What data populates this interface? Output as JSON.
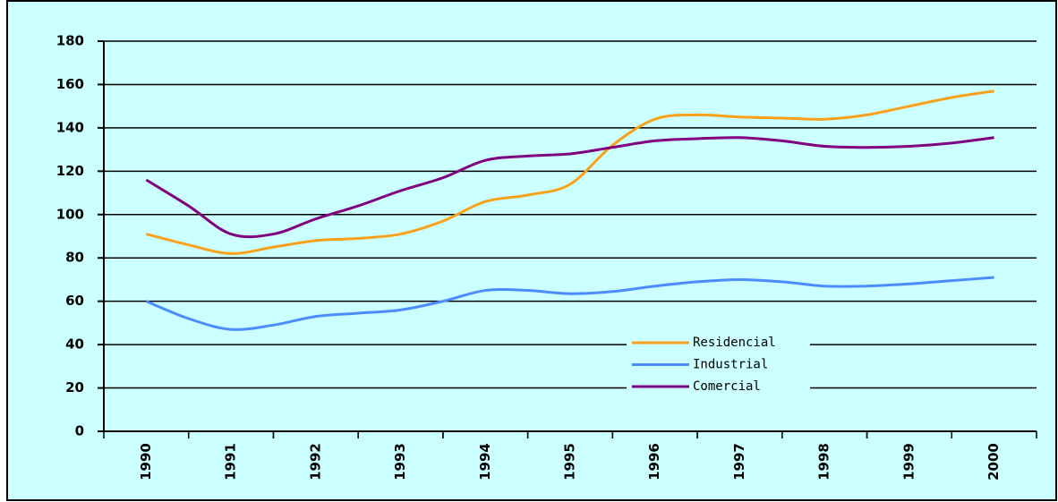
{
  "chart_data": {
    "type": "line",
    "categories": [
      "1990",
      null,
      "1991",
      null,
      "1992",
      null,
      "1993",
      null,
      "1994",
      null,
      "1995",
      null,
      "1996",
      null,
      "1997",
      null,
      "1998",
      null,
      "1999",
      null,
      "2000"
    ],
    "series": [
      {
        "name": "Residencial",
        "color": "#f9a11b",
        "values": [
          91,
          86,
          82,
          85,
          88,
          89,
          91,
          97,
          106,
          109,
          114,
          132,
          144,
          146,
          145,
          144.5,
          144,
          146,
          150,
          154,
          157
        ]
      },
      {
        "name": "Industrial",
        "color": "#4c8cff",
        "values": [
          60,
          52,
          47,
          49,
          53,
          54.5,
          56,
          60,
          65,
          65,
          63.5,
          64.5,
          67,
          69,
          70,
          69,
          67,
          67,
          68,
          69.5,
          71
        ]
      },
      {
        "name": "Comercial",
        "color": "#800080",
        "values": [
          116,
          104,
          91,
          91,
          98,
          104,
          111,
          117,
          125,
          127,
          128,
          131,
          134,
          135,
          135.5,
          134,
          131.5,
          131,
          131.5,
          133,
          135.5
        ]
      }
    ],
    "ylim": [
      0,
      180
    ],
    "yticks": [
      0,
      20,
      40,
      60,
      80,
      100,
      120,
      140,
      160,
      180
    ],
    "grid": true,
    "legend": "lower right",
    "smooth": true
  }
}
